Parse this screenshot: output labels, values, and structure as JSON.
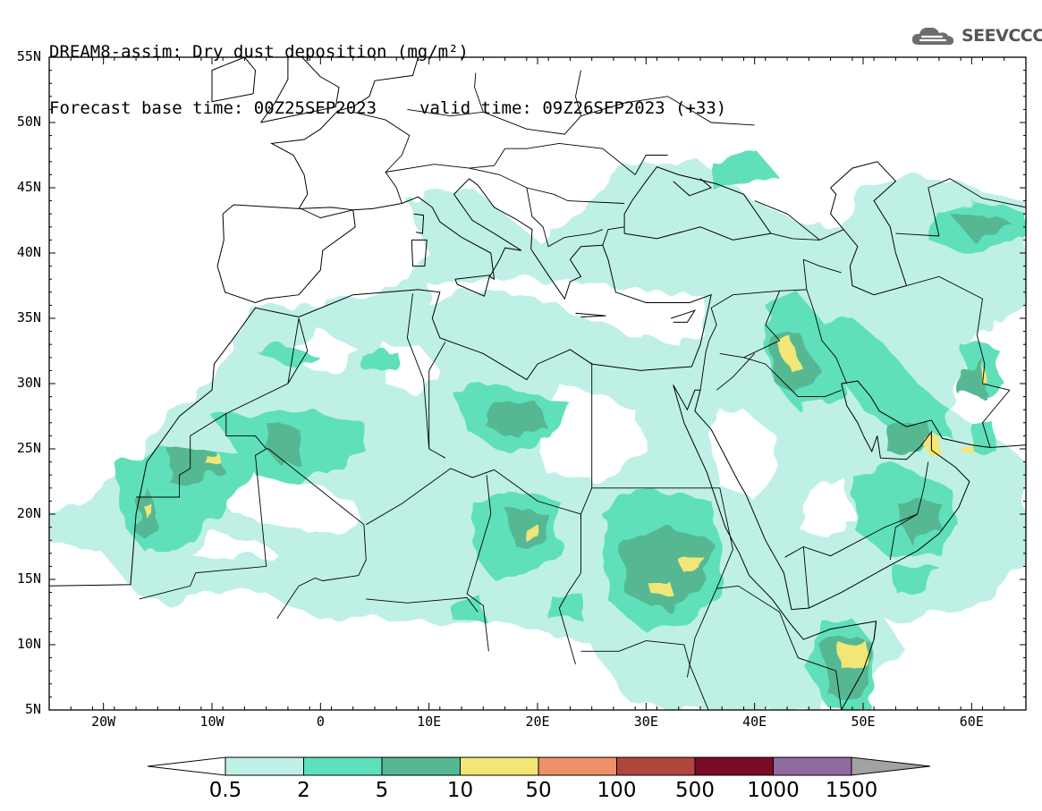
{
  "title": {
    "line1": "DREAM8-assim: Dry dust deposition (mg/m²)",
    "base_time": "Forecast base time: 00Z25SEP2023",
    "valid_time": "valid time: 09Z26SEP2023 (+33)"
  },
  "logo": {
    "text": "SEEVCCC",
    "icon": "cloud-icon"
  },
  "map": {
    "projection": "lat-lon",
    "lon_range": [
      -25,
      65
    ],
    "lat_range": [
      5,
      55
    ],
    "lat_labels": [
      "55N",
      "50N",
      "45N",
      "40N",
      "35N",
      "30N",
      "25N",
      "20N",
      "15N",
      "10N",
      "5N"
    ],
    "lon_labels": [
      "20W",
      "10W",
      "0",
      "10E",
      "20E",
      "30E",
      "40E",
      "50E",
      "60E"
    ],
    "colors": {
      "level_0_5": "#bff0e6",
      "level_2": "#5ee0bb",
      "level_5": "#55b893",
      "level_10": "#f2e676",
      "level_50": "#ee9068",
      "level_100": "#b0473c",
      "level_500": "#7a0a28",
      "level_1000": "#8e6a9e",
      "level_1500": "#a2a2a2",
      "coast": "#000000"
    }
  },
  "colorbar": {
    "labels": [
      "0.5",
      "2",
      "5",
      "10",
      "50",
      "100",
      "500",
      "1000",
      "1500"
    ]
  }
}
